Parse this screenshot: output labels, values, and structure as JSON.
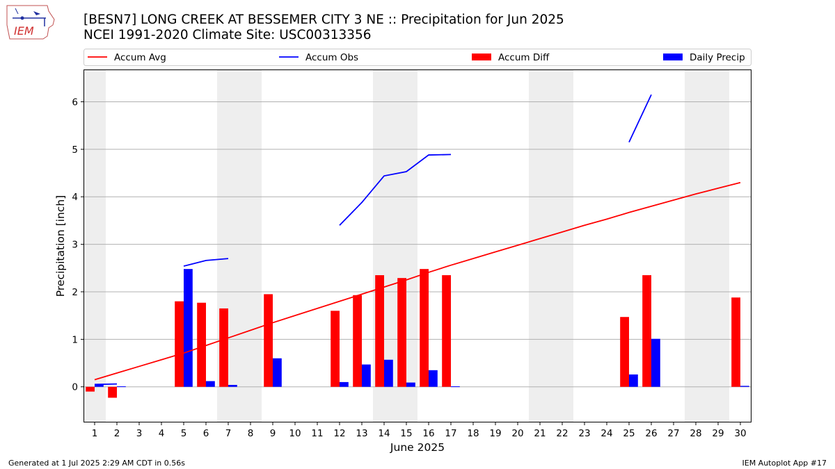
{
  "header": {
    "title_line1": "[BESN7] LONG CREEK  AT BESSEMER CITY 3 NE :: Precipitation for Jun 2025",
    "title_line2": "NCEI 1991-2020 Climate Site: USC00313356"
  },
  "logo": {
    "text": "IEM",
    "icon": "iem-iowa-logo-icon"
  },
  "footer": {
    "left": "Generated at 1 Jul 2025 2:29 AM CDT in 0.56s",
    "right": "IEM Autoplot App #17"
  },
  "colors": {
    "accum_avg": "#ff0000",
    "accum_obs": "#0000ff",
    "accum_diff": "#ff0000",
    "daily_precip": "#0000ff",
    "weekend_band": "#eeeeee",
    "grid": "#b0b0b0"
  },
  "chart_data": {
    "type": "bar",
    "xlabel": "June 2025",
    "ylabel": "Precipitation [inch]",
    "ylim": [
      -0.75,
      6.68
    ],
    "yticks": [
      0,
      1,
      2,
      3,
      4,
      5,
      6
    ],
    "grid": "horizontal",
    "legend_placement": "top",
    "categories": [
      1,
      2,
      3,
      4,
      5,
      6,
      7,
      8,
      9,
      10,
      11,
      12,
      13,
      14,
      15,
      16,
      17,
      18,
      19,
      20,
      21,
      22,
      23,
      24,
      25,
      26,
      27,
      28,
      29,
      30
    ],
    "weekend_bands": [
      [
        1,
        1
      ],
      [
        7,
        8
      ],
      [
        14,
        15
      ],
      [
        21,
        22
      ],
      [
        28,
        29
      ]
    ],
    "legend": [
      "Accum Avg",
      "Accum Obs",
      "Accum Diff",
      "Daily Precip"
    ],
    "series": [
      {
        "name": "Accum Avg",
        "kind": "line",
        "color": "#ff0000",
        "values": [
          0.15,
          0.29,
          0.43,
          0.57,
          0.71,
          0.87,
          1.03,
          1.19,
          1.35,
          1.5,
          1.65,
          1.8,
          1.95,
          2.1,
          2.25,
          2.41,
          2.56,
          2.7,
          2.84,
          2.98,
          3.12,
          3.26,
          3.4,
          3.53,
          3.67,
          3.8,
          3.93,
          4.06,
          4.18,
          4.3
        ]
      },
      {
        "name": "Accum Obs",
        "kind": "line",
        "color": "#0000ff",
        "values": [
          0.05,
          0.06,
          null,
          null,
          2.54,
          2.66,
          2.7,
          null,
          null,
          null,
          null,
          3.4,
          3.88,
          4.44,
          4.53,
          4.88,
          4.89,
          null,
          null,
          null,
          null,
          null,
          null,
          null,
          5.15,
          6.15,
          null,
          null,
          null,
          null
        ]
      },
      {
        "name": "Accum Diff",
        "kind": "bar",
        "color": "#ff0000",
        "values": [
          -0.1,
          -0.23,
          0,
          0,
          1.8,
          1.77,
          1.65,
          0,
          1.95,
          0,
          0,
          1.6,
          1.93,
          2.35,
          2.29,
          2.48,
          2.35,
          0,
          0,
          0,
          0,
          0,
          0,
          0,
          1.47,
          2.35,
          0,
          0,
          0,
          1.88
        ]
      },
      {
        "name": "Daily Precip",
        "kind": "bar",
        "color": "#0000ff",
        "values": [
          0.05,
          0.01,
          0,
          0,
          2.48,
          0.12,
          0.04,
          0,
          0.6,
          0,
          0,
          0.1,
          0.47,
          0.57,
          0.09,
          0.35,
          0.01,
          0,
          0,
          0,
          0,
          0,
          0,
          0,
          0.26,
          1.01,
          0,
          0,
          0,
          0.02
        ]
      }
    ]
  }
}
